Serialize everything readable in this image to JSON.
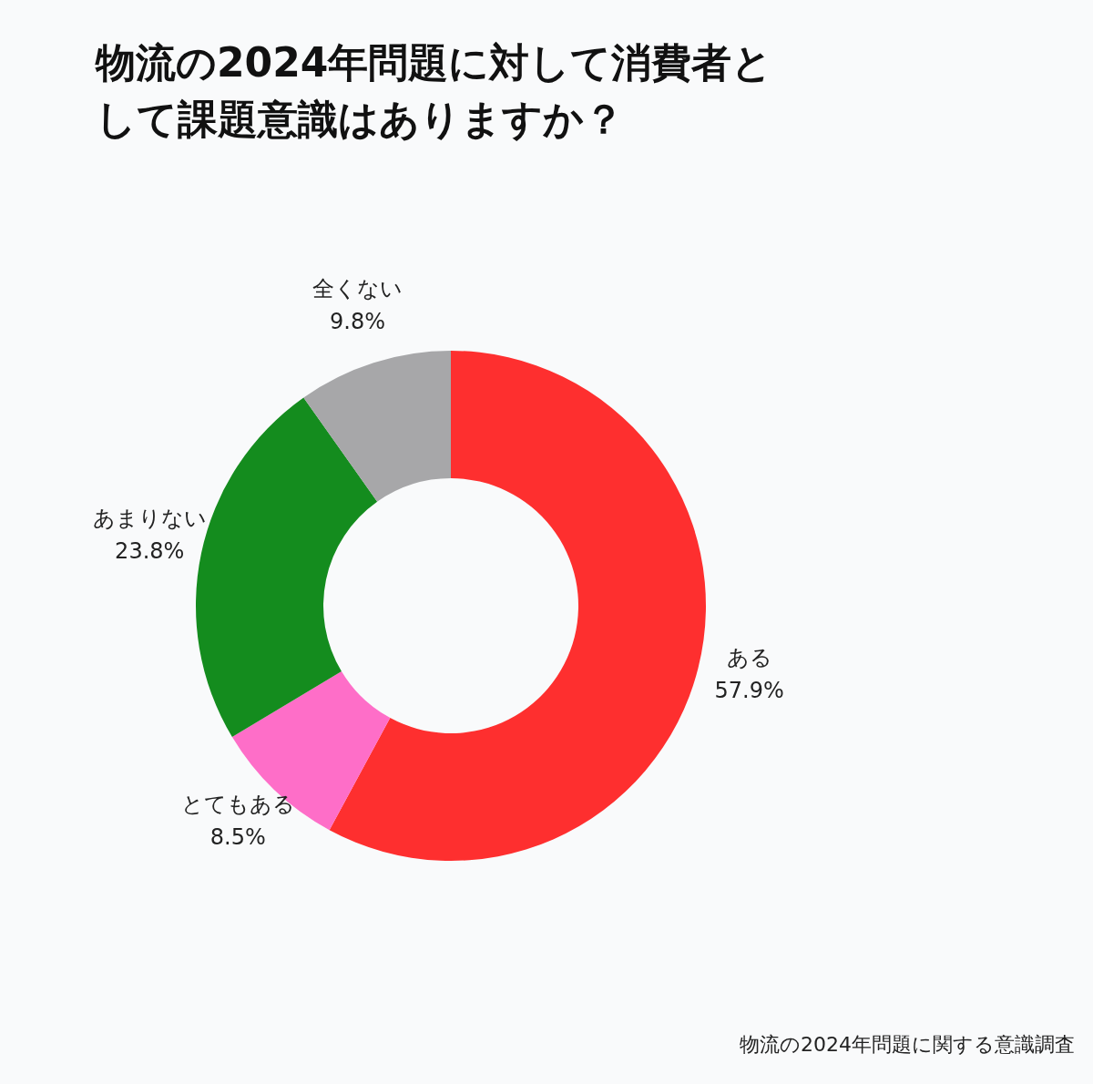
{
  "chart_data": {
    "type": "donut",
    "title": "物流の2024年問題に対して消費者として課題意識はありますか？",
    "categories": [
      "ある",
      "とてもある",
      "あまりない",
      "全くない"
    ],
    "values": [
      57.9,
      8.5,
      23.8,
      9.8
    ],
    "value_labels": [
      "57.9%",
      "8.5%",
      "23.8%",
      "9.8%"
    ],
    "colors": [
      "#fe2f2f",
      "#fe6ec8",
      "#148c1e",
      "#a7a7a9"
    ],
    "annotations": [
      "物流の2024年問題に関する意識調査"
    ]
  }
}
